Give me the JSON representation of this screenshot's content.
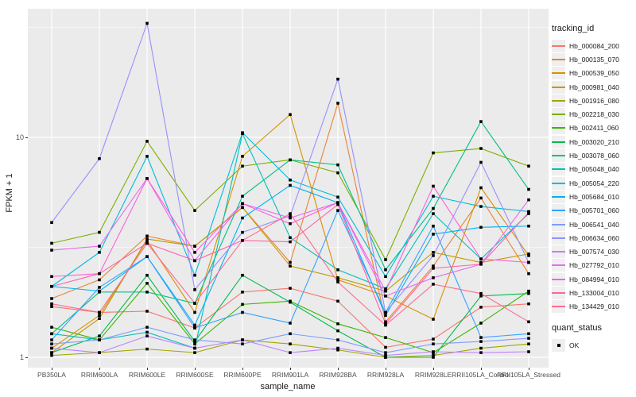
{
  "y_axis": {
    "label": "FPKM + 1",
    "ticks": [
      "1",
      "10"
    ]
  },
  "x_axis": {
    "label": "sample_name"
  },
  "legend": {
    "tracking_title": "tracking_id",
    "quant_title": "quant_status",
    "quant_ok": "OK"
  },
  "colors": {
    "panel_bg": "#EBEBEB",
    "grid": "#FFFFFF",
    "tick_text": "#4D4D4D",
    "point": "#000000",
    "legend_key_bg": "#EFEFEF"
  },
  "chart_data": {
    "type": "line",
    "title": "",
    "xlabel": "sample_name",
    "ylabel": "FPKM + 1",
    "y_scale": "log10",
    "ylim": [
      0.9,
      38
    ],
    "y_ticks": [
      1,
      10
    ],
    "y_minor_ticks": [
      3.162,
      31.62
    ],
    "grid": true,
    "legend_position": "right",
    "point_shape": "filled-square",
    "quant_status_all": "OK",
    "categories": [
      "PB350LA",
      "RRIM600LA",
      "RRIM600LE",
      "RRIM600SE",
      "RRIM600PE",
      "RRIM901LA",
      "RRIM928BA",
      "RRIM928LA",
      "RRIM928LE",
      "RRII105LA_Control",
      "RRII105LA_Stressed"
    ],
    "series": [
      {
        "name": "Hb_000084_200",
        "color": "#F8766D",
        "values": [
          1.7,
          1.6,
          1.62,
          1.36,
          1.98,
          2.06,
          1.8,
          1.11,
          1.21,
          1.69,
          1.75
        ]
      },
      {
        "name": "Hb_000135_070",
        "color": "#EA8331",
        "values": [
          1.85,
          2.25,
          3.56,
          3.2,
          4.8,
          2.7,
          14.3,
          1.45,
          2.6,
          5.3,
          2.4
        ]
      },
      {
        "name": "Hb_000539_050",
        "color": "#D89000",
        "values": [
          1.1,
          1.55,
          3.4,
          1.6,
          8.2,
          12.7,
          2.25,
          1.9,
          1.49,
          5.9,
          2.9
        ]
      },
      {
        "name": "Hb_000981_040",
        "color": "#C09B00",
        "values": [
          1.05,
          1.5,
          3.45,
          3.2,
          4.8,
          2.6,
          2.3,
          2.0,
          3.0,
          2.7,
          2.95
        ]
      },
      {
        "name": "Hb_001916_080",
        "color": "#A3A500",
        "values": [
          1.02,
          1.05,
          1.09,
          1.05,
          1.2,
          1.15,
          1.08,
          1.0,
          1.02,
          1.1,
          1.15
        ]
      },
      {
        "name": "Hb_002218_030",
        "color": "#7CAE00",
        "values": [
          3.3,
          3.7,
          9.6,
          4.65,
          7.4,
          7.9,
          6.9,
          2.78,
          8.5,
          8.9,
          7.4
        ]
      },
      {
        "name": "Hb_002411_060",
        "color": "#39B600",
        "values": [
          1.37,
          1.2,
          2.17,
          1.15,
          1.74,
          1.8,
          1.42,
          1.23,
          1.05,
          1.43,
          2.0
        ]
      },
      {
        "name": "Hb_003020_210",
        "color": "#00BB4E",
        "values": [
          1.05,
          1.25,
          2.36,
          1.18,
          2.36,
          1.78,
          1.32,
          1.0,
          1.0,
          1.9,
          1.95
        ]
      },
      {
        "name": "Hb_003078_060",
        "color": "#00C087",
        "values": [
          1.28,
          1.98,
          1.98,
          1.76,
          5.4,
          7.9,
          7.5,
          2.5,
          4.75,
          11.8,
          5.8
        ]
      },
      {
        "name": "Hb_005048_040",
        "color": "#00C0B8",
        "values": [
          1.28,
          1.2,
          1.3,
          1.1,
          10.4,
          3.5,
          2.5,
          2.05,
          4.5,
          2.8,
          4.5
        ]
      },
      {
        "name": "Hb_005054_220",
        "color": "#00BCD8",
        "values": [
          2.1,
          3.0,
          8.2,
          2.36,
          10.5,
          6.4,
          5.35,
          2.33,
          5.4,
          4.85,
          4.6
        ]
      },
      {
        "name": "Hb_005684_010",
        "color": "#00B0F6",
        "values": [
          2.1,
          2.0,
          2.87,
          1.4,
          4.3,
          6.05,
          5.05,
          1.55,
          3.63,
          3.9,
          3.95
        ]
      },
      {
        "name": "Hb_005701_060",
        "color": "#35A2FF",
        "values": [
          1.2,
          2.08,
          2.87,
          1.36,
          1.6,
          1.43,
          4.65,
          1.6,
          3.95,
          1.23,
          1.28
        ]
      },
      {
        "name": "Hb_006541_040",
        "color": "#7C9DFF",
        "values": [
          1.15,
          1.2,
          1.37,
          1.2,
          1.15,
          1.28,
          1.2,
          1.05,
          1.15,
          1.18,
          1.22
        ]
      },
      {
        "name": "Hb_006634_060",
        "color": "#9590FF",
        "values": [
          4.1,
          8.0,
          33.0,
          2.03,
          3.7,
          4.4,
          18.4,
          1.6,
          2.9,
          7.7,
          2.7
        ]
      },
      {
        "name": "Hb_007574_030",
        "color": "#BC80FF",
        "values": [
          1.1,
          1.05,
          1.25,
          1.1,
          1.2,
          1.05,
          1.1,
          1.02,
          1.06,
          1.05,
          1.06
        ]
      },
      {
        "name": "Hb_027792_010",
        "color": "#E76BF3",
        "values": [
          3.07,
          3.2,
          6.5,
          2.75,
          5.0,
          4.3,
          5.05,
          1.9,
          2.3,
          2.65,
          5.2
        ]
      },
      {
        "name": "Hb_084994_010",
        "color": "#FB61D7",
        "values": [
          2.33,
          2.4,
          6.5,
          3.0,
          5.0,
          4.05,
          5.05,
          2.0,
          6.0,
          2.8,
          2.7
        ]
      },
      {
        "name": "Hb_133004_010",
        "color": "#FF62A8",
        "values": [
          2.1,
          2.4,
          3.3,
          2.75,
          3.4,
          3.35,
          4.95,
          1.42,
          2.54,
          2.65,
          4.55
        ]
      },
      {
        "name": "Hb_134429_010",
        "color": "#FF6B90",
        "values": [
          1.75,
          1.6,
          3.3,
          1.76,
          3.4,
          4.5,
          2.2,
          1.4,
          2.15,
          1.95,
          1.45
        ]
      }
    ]
  }
}
